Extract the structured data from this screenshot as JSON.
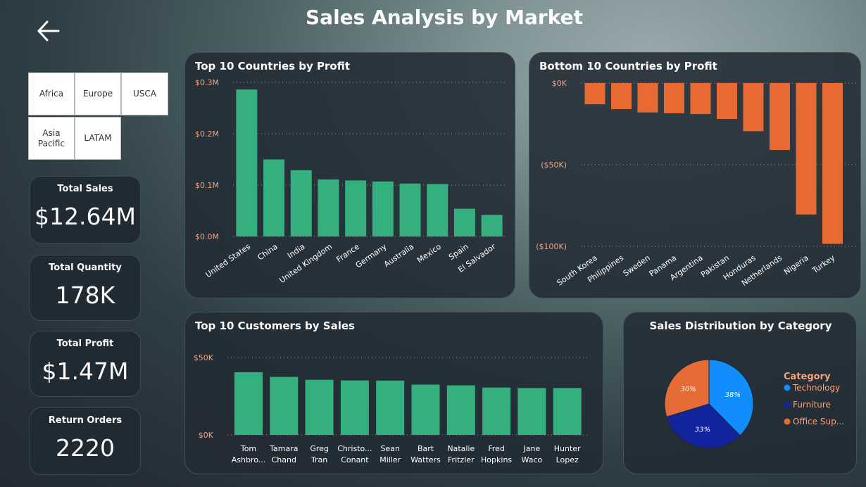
{
  "header": {
    "title": "Sales Analysis by Market",
    "back_icon": "arrow-left-icon"
  },
  "slicer": {
    "options": [
      "Africa",
      "Europe",
      "USCA",
      "Asia Pacific",
      "LATAM"
    ]
  },
  "kpis": [
    {
      "label": "Total Sales",
      "value": "$12.64M"
    },
    {
      "label": "Total Quantity",
      "value": "178K"
    },
    {
      "label": "Total Profit",
      "value": "$1.47M"
    },
    {
      "label": "Return Orders",
      "value": "2220"
    }
  ],
  "colors": {
    "green": "#34b07e",
    "orange": "#e86a33",
    "tech": "#118dff",
    "furniture": "#12239e",
    "office": "#e66c37",
    "accent_label": "#f5a37d"
  },
  "chart_data": [
    {
      "type": "bar",
      "title": "Top 10 Countries by Profit",
      "categories": [
        "United States",
        "China",
        "India",
        "United Kingdom",
        "France",
        "Germany",
        "Australia",
        "Mexico",
        "Spain",
        "El Salvador"
      ],
      "values": [
        286000,
        150000,
        129000,
        111000,
        109000,
        107000,
        103000,
        102000,
        54000,
        42000
      ],
      "yticks": [
        0,
        100000,
        200000,
        300000
      ],
      "ytick_labels": [
        "$0.0M",
        "$0.1M",
        "$0.2M",
        "$0.3M"
      ],
      "ylim": [
        0,
        300000
      ]
    },
    {
      "type": "bar",
      "title": "Bottom 10 Countries by Profit",
      "categories": [
        "South Korea",
        "Philippines",
        "Sweden",
        "Panama",
        "Argentina",
        "Pakistan",
        "Honduras",
        "Netherlands",
        "Nigeria",
        "Turkey"
      ],
      "values": [
        -13000,
        -16000,
        -18000,
        -18500,
        -19000,
        -22000,
        -29500,
        -41000,
        -80500,
        -98500
      ],
      "yticks": [
        0,
        -50000,
        -100000
      ],
      "ytick_labels": [
        "$0K",
        "($50K)",
        "($100K)"
      ],
      "ylim": [
        -100000,
        0
      ]
    },
    {
      "type": "bar",
      "title": "Top 10 Customers by Sales",
      "categories": [
        [
          "Tom",
          "Ashbro..."
        ],
        [
          "Tamara",
          "Chand"
        ],
        [
          "Greg",
          "Tran"
        ],
        [
          "Christo...",
          "Conant"
        ],
        [
          "Sean",
          "Miller"
        ],
        [
          "Bart",
          "Watters"
        ],
        [
          "Natalie",
          "Fritzler"
        ],
        [
          "Fred",
          "Hopkins"
        ],
        [
          "Jane",
          "Waco"
        ],
        [
          "Hunter",
          "Lopez"
        ]
      ],
      "values": [
        40500,
        37500,
        35600,
        35200,
        35100,
        32500,
        32000,
        30600,
        30300,
        30300
      ],
      "yticks": [
        0,
        50000
      ],
      "ytick_labels": [
        "$0K",
        "$50K"
      ],
      "ylim": [
        0,
        50000
      ]
    },
    {
      "type": "pie",
      "title": "Sales Distribution by Category",
      "legend_title": "Category",
      "labels": [
        "Technology",
        "Furniture",
        "Office Sup..."
      ],
      "values": [
        38,
        33,
        30
      ],
      "value_labels": [
        "38%",
        "33%",
        "30%"
      ]
    }
  ]
}
